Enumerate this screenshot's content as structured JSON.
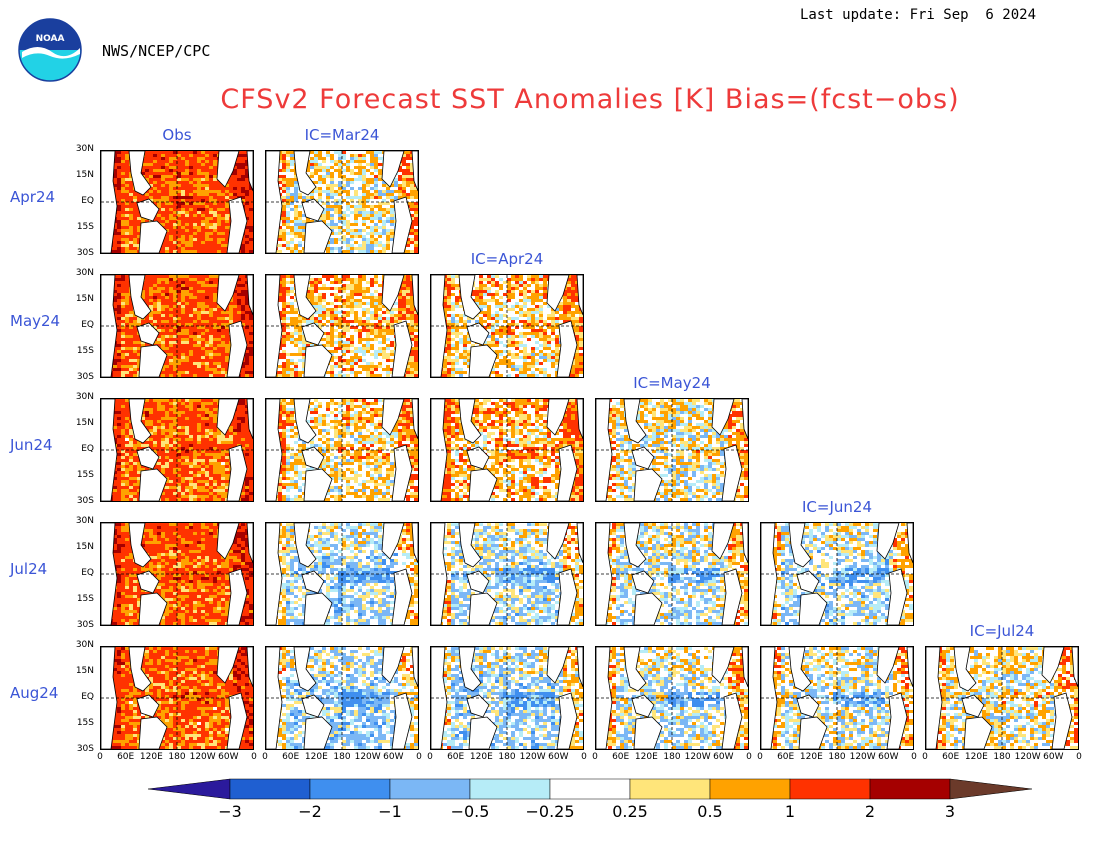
{
  "header": {
    "last_update": "Last update: Fri Sep  6 2024",
    "organization": "NWS/NCEP/CPC",
    "logo_text": "NOAA",
    "title": "CFSv2 Forecast SST Anomalies [K] Bias=(fcst−obs)"
  },
  "colors": {
    "title": "#ee3a3a",
    "labels": "#3b55d6",
    "scale": [
      "#2b1a9c",
      "#1f5fd1",
      "#3f8fef",
      "#7bb7f5",
      "#b6ecf7",
      "#ffffff",
      "#ffe57a",
      "#ffa200",
      "#ff3200",
      "#a50000",
      "#6b3a2a"
    ]
  },
  "chart_data": {
    "type": "heatmap",
    "title": "CFSv2 Forecast SST Anomalies [K] Bias=(fcst−obs)",
    "columns": [
      "Obs",
      "IC=Mar24",
      "IC=Apr24",
      "IC=May24",
      "IC=Jun24",
      "IC=Jul24"
    ],
    "rows": [
      "Apr24",
      "May24",
      "Jun24",
      "Jul24",
      "Aug24"
    ],
    "lat_ticks": [
      "30N",
      "15N",
      "EQ",
      "15S",
      "30S"
    ],
    "lon_ticks": [
      "0",
      "60E",
      "120E",
      "180",
      "120W",
      "60W",
      "0"
    ],
    "panels_per_row": [
      2,
      3,
      4,
      5,
      6
    ],
    "colorbar": {
      "levels": [
        "−3",
        "−2",
        "−1",
        "−0.5",
        "−0.25",
        "0.25",
        "0.5",
        "1",
        "2",
        "3"
      ],
      "extend": "both"
    },
    "panel_tone": [
      [
        0.9,
        0.05
      ],
      [
        0.85,
        0.25,
        0.2
      ],
      [
        0.8,
        0.15,
        0.3,
        0.0
      ],
      [
        0.85,
        -0.25,
        -0.2,
        -0.15,
        -0.2
      ],
      [
        0.8,
        -0.3,
        -0.25,
        -0.1,
        -0.1,
        0.0
      ]
    ]
  }
}
